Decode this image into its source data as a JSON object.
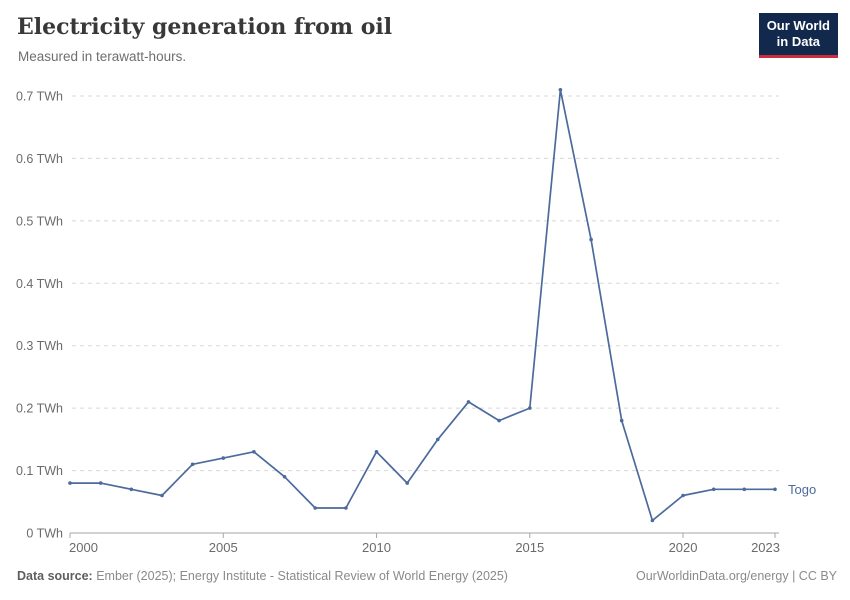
{
  "header": {
    "title": "Electricity generation from oil",
    "subtitle": "Measured in terawatt-hours.",
    "logo": {
      "line1": "Our World",
      "line2": "in Data"
    }
  },
  "chart_data": {
    "type": "line",
    "title": "Electricity generation from oil",
    "subtitle": "Measured in terawatt-hours.",
    "unit": "TWh",
    "x": [
      2000,
      2001,
      2002,
      2003,
      2004,
      2005,
      2006,
      2007,
      2008,
      2009,
      2010,
      2011,
      2012,
      2013,
      2014,
      2015,
      2016,
      2017,
      2018,
      2019,
      2020,
      2021,
      2022,
      2023
    ],
    "series": [
      {
        "name": "Togo",
        "color": "#4C6A9C",
        "values": [
          0.08,
          0.08,
          0.07,
          0.06,
          0.11,
          0.12,
          0.13,
          0.09,
          0.04,
          0.04,
          0.13,
          0.08,
          0.15,
          0.21,
          0.18,
          0.2,
          0.71,
          0.47,
          0.18,
          0.02,
          0.06,
          0.07,
          0.07,
          0.07
        ]
      }
    ],
    "xlim": [
      2000,
      2023
    ],
    "ylim": [
      0,
      0.7
    ],
    "x_ticks": [
      2000,
      2005,
      2010,
      2015,
      2020,
      2023
    ],
    "y_ticks": [
      0,
      0.1,
      0.2,
      0.3,
      0.4,
      0.5,
      0.6,
      0.7
    ],
    "y_tick_suffix": " TWh",
    "grid": "horizontal-dashed",
    "legend": "line-end-label"
  },
  "footer": {
    "source_label": "Data source:",
    "source_text": " Ember (2025); Energy Institute - Statistical Review of World Energy (2025)",
    "credit": "OurWorldinData.org/energy | CC BY"
  },
  "colors": {
    "line": "#4C6A9C",
    "logo_navy": "#12294D",
    "logo_red": "#CB2D3E",
    "title_text": "#383838",
    "muted_text": "#6e6e6e"
  }
}
